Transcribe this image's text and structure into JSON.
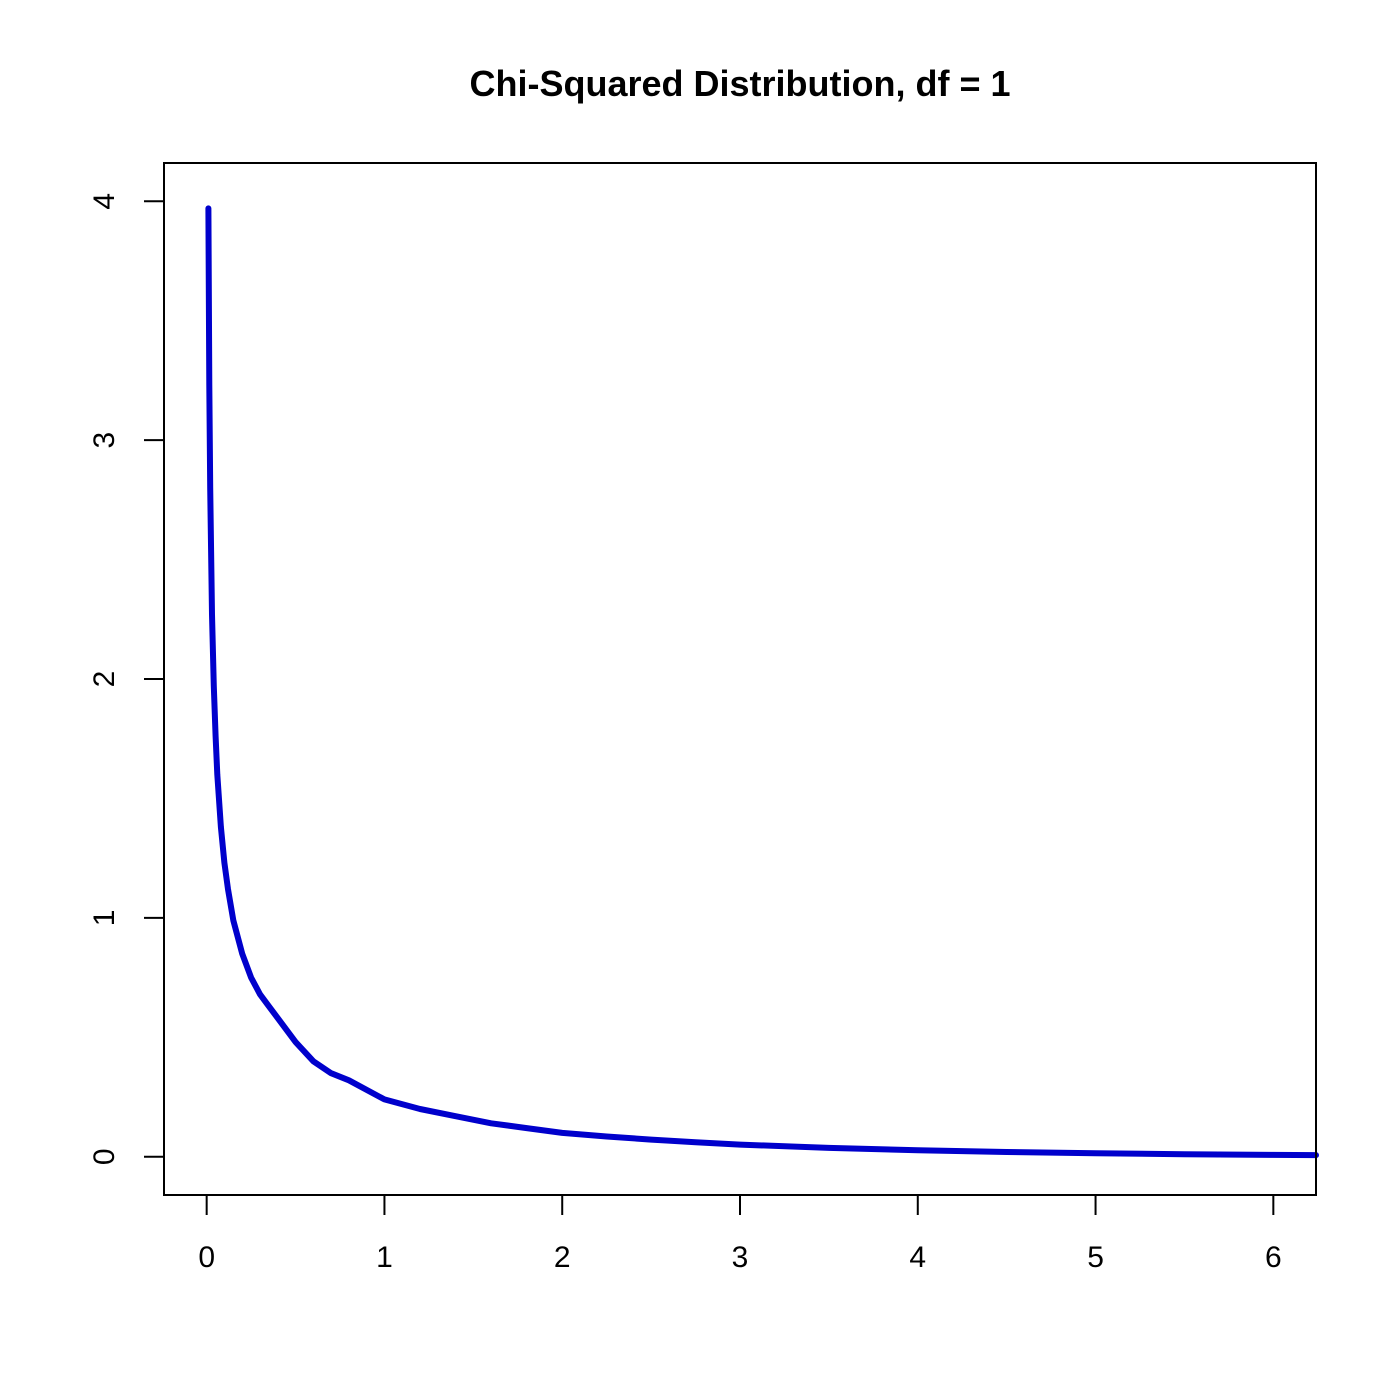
{
  "chart_data": {
    "type": "line",
    "title": "Chi-Squared Distribution, df = 1",
    "xlabel": "",
    "ylabel": "",
    "xlim": [
      -0.24,
      6.24
    ],
    "ylim": [
      -0.16,
      4.16
    ],
    "x_ticks": [
      "0",
      "1",
      "2",
      "3",
      "4",
      "5",
      "6"
    ],
    "y_ticks": [
      "0",
      "1",
      "2",
      "3",
      "4"
    ],
    "grid": false,
    "series": [
      {
        "color": "#0000CC",
        "x": [
          0.01,
          0.015,
          0.02,
          0.03,
          0.04,
          0.05,
          0.06,
          0.08,
          0.1,
          0.12,
          0.15,
          0.2,
          0.25,
          0.3,
          0.35,
          0.4,
          0.5,
          0.6,
          0.7,
          0.8,
          1.0,
          1.2,
          1.4,
          1.6,
          1.8,
          2.0,
          2.25,
          2.5,
          2.75,
          3.0,
          3.5,
          4.0,
          4.5,
          5.0,
          5.5,
          6.0,
          6.24
        ],
        "y": [
          3.97,
          3.23,
          2.8,
          2.27,
          1.97,
          1.76,
          1.6,
          1.38,
          1.23,
          1.12,
          0.99,
          0.85,
          0.75,
          0.68,
          0.63,
          0.58,
          0.48,
          0.4,
          0.35,
          0.32,
          0.24,
          0.2,
          0.17,
          0.14,
          0.12,
          0.1,
          0.085,
          0.072,
          0.061,
          0.051,
          0.037,
          0.027,
          0.02,
          0.015,
          0.011,
          0.008,
          0.007
        ]
      }
    ]
  }
}
